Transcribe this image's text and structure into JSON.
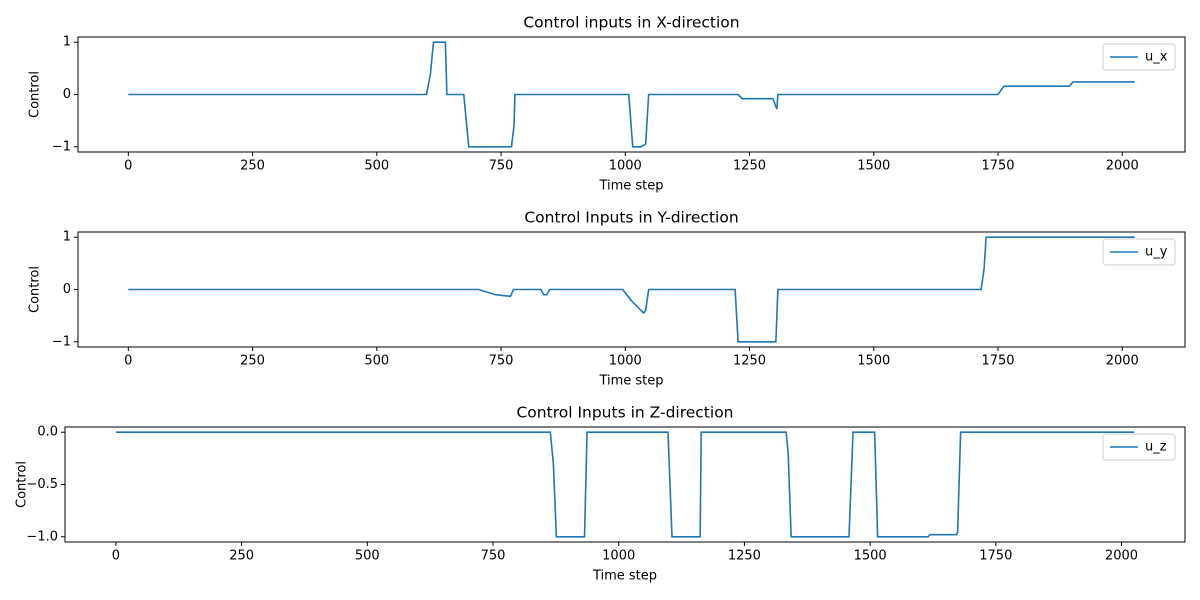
{
  "chart_data": [
    {
      "type": "line",
      "title": "Control inputs in X-direction",
      "x_label": "Time step",
      "y_label": "Control",
      "x": [
        0,
        600,
        608,
        614,
        638,
        641,
        675,
        685,
        771,
        776,
        778,
        1007,
        1015,
        1031,
        1041,
        1047,
        1227,
        1235,
        1297,
        1305,
        1307,
        1750,
        1762,
        1893,
        1901,
        2025
      ],
      "series": [
        {
          "name": "u_x",
          "color": "#1f77b4",
          "values": [
            0,
            0,
            0.4,
            1,
            1,
            0,
            0,
            -1,
            -1,
            -0.6,
            0,
            0,
            -1,
            -1,
            -0.95,
            0,
            0,
            -0.08,
            -0.08,
            -0.28,
            0,
            0,
            0.16,
            0.16,
            0.24,
            0.24
          ]
        }
      ],
      "xlim": [
        -101.25,
        2126.25
      ],
      "xticks": [
        0,
        250,
        500,
        750,
        1000,
        1250,
        1500,
        1750,
        2000
      ],
      "ylim": [
        -1.1,
        1.1
      ],
      "yticks": [
        {
          "value": -1,
          "label": "−1"
        },
        0,
        1
      ],
      "legend": "upper right",
      "grid": false
    },
    {
      "type": "line",
      "title": "Control Inputs in Y-direction",
      "x_label": "Time step",
      "y_label": "Control",
      "x": [
        0,
        705,
        739,
        769,
        775,
        830,
        836,
        842,
        848,
        995,
        1011,
        1021,
        1037,
        1041,
        1047,
        1221,
        1227,
        1303,
        1307,
        1716,
        1722,
        1726,
        2025
      ],
      "series": [
        {
          "name": "u_y",
          "color": "#1f77b4",
          "values": [
            0,
            0,
            -0.1,
            -0.13,
            0,
            0,
            -0.1,
            -0.1,
            0,
            0,
            -0.2,
            -0.3,
            -0.45,
            -0.4,
            0,
            0,
            -1,
            -1,
            0,
            0,
            0.4,
            1,
            1
          ]
        }
      ],
      "xlim": [
        -101.25,
        2126.25
      ],
      "xticks": [
        0,
        250,
        500,
        750,
        1000,
        1250,
        1500,
        1750,
        2000
      ],
      "ylim": [
        -1.1,
        1.1
      ],
      "yticks": [
        {
          "value": -1,
          "label": "−1"
        },
        0,
        1
      ],
      "legend": "upper right",
      "grid": false
    },
    {
      "type": "line",
      "title": "Control Inputs in Z-direction",
      "x_label": "Time step",
      "y_label": "Control",
      "x": [
        0,
        864,
        870,
        876,
        932,
        937,
        1098,
        1106,
        1162,
        1164,
        1333,
        1337,
        1343,
        1458,
        1466,
        1509,
        1515,
        1615,
        1619,
        1672,
        1674,
        1680,
        2025
      ],
      "series": [
        {
          "name": "u_z",
          "color": "#1f77b4",
          "values": [
            0,
            0,
            -0.3,
            -1,
            -1,
            0,
            0,
            -1,
            -1,
            0,
            0,
            -0.2,
            -1,
            -1,
            0,
            0,
            -1,
            -1,
            -0.98,
            -0.98,
            -0.95,
            0,
            0
          ]
        }
      ],
      "xlim": [
        -101.25,
        2126.25
      ],
      "xticks": [
        0,
        250,
        500,
        750,
        1000,
        1250,
        1500,
        1750,
        2000
      ],
      "ylim": [
        -1.05,
        0.05
      ],
      "yticks": [
        {
          "value": -1,
          "label": "−1.0"
        },
        {
          "value": -0.5,
          "label": "−0.5"
        },
        {
          "value": 0,
          "label": "0.0"
        }
      ],
      "legend": "upper right",
      "grid": false
    }
  ]
}
